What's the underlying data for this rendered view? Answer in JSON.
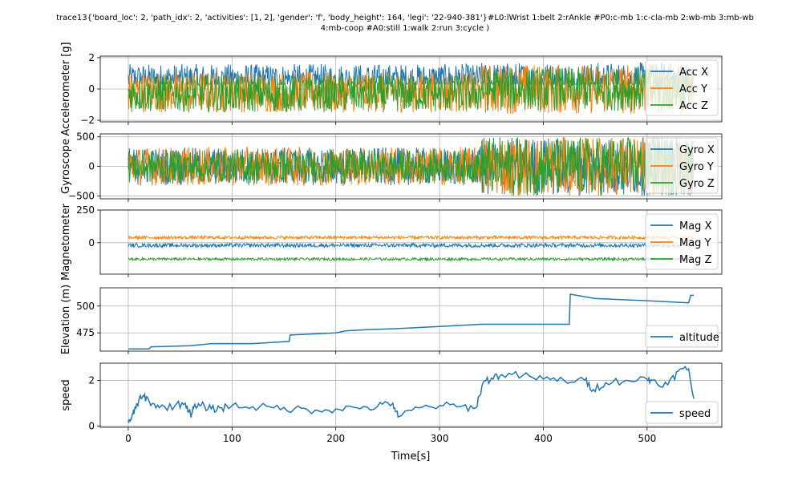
{
  "chart_data": {
    "title_line1": "trace13{'board_loc': 2, 'path_idx': 2, 'activities': [1, 2], 'gender': 'f', 'body_height': 164, 'legi': '22-940-381'}#L0:lWrist 1:belt 2:rAnkle #P0:c-mb 1:c-cla-mb 2:wb-mb 3:mb-wb",
    "title_line2": "4:mb-coop #A0:still 1:walk 2:run 3:cycle )",
    "xlabel": "Time[s]",
    "xlim": [
      -27,
      572
    ],
    "xticks": [
      0,
      100,
      200,
      300,
      400,
      500
    ],
    "colors": {
      "x": "#1f77b4",
      "y": "#ff7f0e",
      "z": "#2ca02c"
    },
    "panels": [
      {
        "type": "line",
        "ylabel": "Accelerometer [g]",
        "ylim": [
          -2.1,
          2.1
        ],
        "yticks": [
          -2,
          0,
          2
        ],
        "grid": true,
        "legend": "right",
        "series": [
          {
            "name": "Acc X",
            "color": "#1f77b4",
            "kind": "noise",
            "segments": [
              [
                0,
                340,
                0.6,
                1.0,
                2.0,
                0.3
              ],
              [
                340,
                545,
                0.5,
                1.2,
                2.0,
                0.3
              ]
            ]
          },
          {
            "name": "Acc Y",
            "color": "#ff7f0e",
            "kind": "noise",
            "segments": [
              [
                0,
                340,
                -0.2,
                1.3,
                2.0,
                -2.0
              ],
              [
                340,
                545,
                0.0,
                1.6,
                2.0,
                -2.0
              ]
            ]
          },
          {
            "name": "Acc Z",
            "color": "#2ca02c",
            "kind": "noise",
            "segments": [
              [
                0,
                340,
                -0.3,
                1.2,
                1.2,
                -2.0
              ],
              [
                340,
                545,
                0.0,
                1.4,
                2.0,
                -2.0
              ]
            ]
          }
        ]
      },
      {
        "type": "line",
        "ylabel": "Gyroscope",
        "ylim": [
          -550,
          550
        ],
        "yticks": [
          -500,
          0,
          500
        ],
        "grid": true,
        "legend": "right",
        "series": [
          {
            "name": "Gyro X",
            "color": "#1f77b4",
            "kind": "noise",
            "segments": [
              [
                0,
                340,
                0,
                320,
                420,
                -420
              ],
              [
                340,
                545,
                0,
                500,
                500,
                -500
              ]
            ]
          },
          {
            "name": "Gyro Y",
            "color": "#ff7f0e",
            "kind": "noise",
            "segments": [
              [
                0,
                340,
                0,
                330,
                330,
                -400
              ],
              [
                340,
                545,
                0,
                500,
                500,
                -500
              ]
            ]
          },
          {
            "name": "Gyro Z",
            "color": "#2ca02c",
            "kind": "noise",
            "segments": [
              [
                0,
                340,
                0,
                280,
                300,
                -450
              ],
              [
                340,
                545,
                0,
                500,
                500,
                -500
              ]
            ]
          }
        ]
      },
      {
        "type": "line",
        "ylabel": "Magnetometer",
        "ylim": [
          -240,
          250
        ],
        "yticks": [
          0,
          250
        ],
        "grid": true,
        "legend": "right",
        "series": [
          {
            "name": "Mag X",
            "color": "#1f77b4",
            "kind": "noise",
            "segments": [
              [
                0,
                545,
                -20,
                15,
                40,
                -60
              ]
            ]
          },
          {
            "name": "Mag Y",
            "color": "#ff7f0e",
            "kind": "noise",
            "segments": [
              [
                0,
                545,
                40,
                12,
                230,
                0
              ]
            ]
          },
          {
            "name": "Mag Z",
            "color": "#2ca02c",
            "kind": "noise",
            "segments": [
              [
                0,
                545,
                -125,
                10,
                -90,
                -160
              ]
            ]
          }
        ]
      },
      {
        "type": "line",
        "ylabel": "Elevation (m)",
        "ylim": [
          458,
          517
        ],
        "yticks": [
          475,
          500
        ],
        "grid": true,
        "legend": "lower right",
        "series": [
          {
            "name": "altitude",
            "color": "#1f77b4",
            "kind": "path",
            "x": [
              0,
              20,
              22,
              60,
              80,
              120,
              155,
              156,
              200,
              210,
              230,
              260,
              300,
              320,
              340,
              425,
              426,
              450,
              500,
              540,
              542,
              545
            ],
            "y": [
              460,
              460,
              462,
              463,
              465,
              465,
              467,
              473,
              475,
              477,
              478,
              479,
              481,
              482,
              483,
              483,
              511,
              507,
              505,
              503,
              510,
              510
            ]
          }
        ]
      },
      {
        "type": "line",
        "ylabel": "speed",
        "ylim": [
          -0.05,
          2.75
        ],
        "yticks": [
          0,
          2
        ],
        "grid": true,
        "legend": "lower right",
        "series": [
          {
            "name": "speed",
            "color": "#1f77b4",
            "kind": "path",
            "x": [
              0,
              3,
              6,
              10,
              15,
              20,
              30,
              45,
              55,
              60,
              63,
              70,
              80,
              90,
              100,
              120,
              140,
              160,
              180,
              200,
              220,
              240,
              255,
              260,
              280,
              300,
              320,
              335,
              342,
              350,
              360,
              380,
              400,
              420,
              440,
              448,
              460,
              480,
              500,
              505,
              520,
              530,
              540,
              545
            ],
            "y": [
              0.25,
              0.3,
              0.7,
              1.1,
              1.3,
              1.1,
              0.8,
              0.9,
              1.0,
              0.5,
              0.8,
              0.9,
              0.75,
              0.8,
              0.9,
              0.85,
              0.8,
              0.75,
              0.7,
              0.75,
              0.8,
              0.85,
              1.0,
              0.4,
              0.8,
              0.9,
              0.85,
              0.8,
              1.9,
              2.1,
              2.25,
              2.2,
              2.05,
              2.0,
              2.0,
              1.6,
              1.9,
              2.0,
              2.05,
              2.0,
              1.8,
              2.4,
              2.5,
              1.2
            ]
          }
        ]
      }
    ]
  }
}
